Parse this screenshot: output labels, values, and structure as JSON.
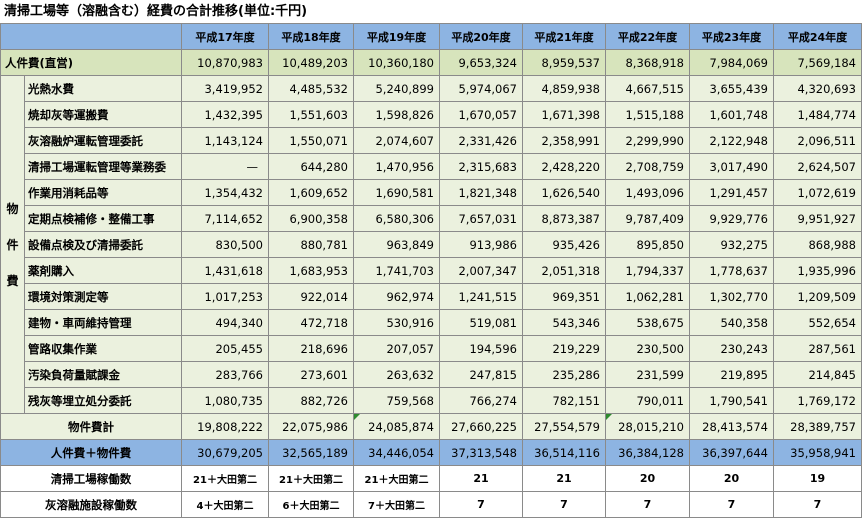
{
  "title": "清掃工場等（溶融含む）経費の合計推移(単位:千円)",
  "years": [
    "平成17年度",
    "平成18年度",
    "平成19年度",
    "平成20年度",
    "平成21年度",
    "平成22年度",
    "平成23年度",
    "平成24年度"
  ],
  "jinken": {
    "label": "人件費(直営)",
    "values": [
      "10,870,983",
      "10,489,203",
      "10,360,180",
      "9,653,324",
      "8,959,537",
      "8,368,918",
      "7,984,069",
      "7,569,184"
    ]
  },
  "group_label": [
    "物",
    "件",
    "費"
  ],
  "items": [
    {
      "label": "光熱水費",
      "values": [
        "3,419,952",
        "4,485,532",
        "5,240,899",
        "5,974,067",
        "4,859,938",
        "4,667,515",
        "3,655,439",
        "4,320,693"
      ]
    },
    {
      "label": "焼却灰等運搬費",
      "values": [
        "1,432,395",
        "1,551,603",
        "1,598,826",
        "1,670,057",
        "1,671,398",
        "1,515,188",
        "1,601,748",
        "1,484,774"
      ]
    },
    {
      "label": "灰溶融炉運転管理委託",
      "values": [
        "1,143,124",
        "1,550,071",
        "2,074,607",
        "2,331,426",
        "2,358,991",
        "2,299,990",
        "2,122,948",
        "2,096,511"
      ]
    },
    {
      "label": "清掃工場運転管理等業務委",
      "values": [
        "—",
        "644,280",
        "1,470,956",
        "2,315,683",
        "2,428,220",
        "2,708,759",
        "3,017,490",
        "2,624,507"
      ]
    },
    {
      "label": "作業用消耗品等",
      "values": [
        "1,354,432",
        "1,609,652",
        "1,690,581",
        "1,821,348",
        "1,626,540",
        "1,493,096",
        "1,291,457",
        "1,072,619"
      ]
    },
    {
      "label": "定期点検補修・整備工事",
      "values": [
        "7,114,652",
        "6,900,358",
        "6,580,306",
        "7,657,031",
        "8,873,387",
        "9,787,409",
        "9,929,776",
        "9,951,927"
      ]
    },
    {
      "label": "設備点検及び清掃委託",
      "values": [
        "830,500",
        "880,781",
        "963,849",
        "913,986",
        "935,426",
        "895,850",
        "932,275",
        "868,988"
      ]
    },
    {
      "label": "薬剤購入",
      "values": [
        "1,431,618",
        "1,683,953",
        "1,741,703",
        "2,007,347",
        "2,051,318",
        "1,794,337",
        "1,778,637",
        "1,935,996"
      ]
    },
    {
      "label": "環境対策測定等",
      "values": [
        "1,017,253",
        "922,014",
        "962,974",
        "1,241,515",
        "969,351",
        "1,062,281",
        "1,302,770",
        "1,209,509"
      ]
    },
    {
      "label": "建物・車両維持管理",
      "values": [
        "494,340",
        "472,718",
        "530,916",
        "519,081",
        "543,346",
        "538,675",
        "540,358",
        "552,654"
      ]
    },
    {
      "label": "管路収集作業",
      "values": [
        "205,455",
        "218,696",
        "207,057",
        "194,596",
        "219,229",
        "230,500",
        "230,243",
        "287,561"
      ]
    },
    {
      "label": "汚染負荷量賦課金",
      "values": [
        "283,766",
        "273,601",
        "263,632",
        "247,815",
        "235,286",
        "231,599",
        "219,895",
        "214,845"
      ]
    },
    {
      "label": "残灰等埋立処分委託",
      "values": [
        "1,080,735",
        "882,726",
        "759,568",
        "766,274",
        "782,151",
        "790,011",
        "1,790,541",
        "1,769,172"
      ]
    }
  ],
  "subtotal": {
    "label": "物件費計",
    "values": [
      "19,808,222",
      "22,075,986",
      "24,085,874",
      "27,660,225",
      "27,554,579",
      "28,015,210",
      "28,413,574",
      "28,389,757"
    ]
  },
  "total": {
    "label": "人件費＋物件費",
    "values": [
      "30,679,205",
      "32,565,189",
      "34,446,054",
      "37,313,548",
      "36,514,116",
      "36,384,128",
      "36,397,644",
      "35,958,941"
    ]
  },
  "plants": {
    "label": "清掃工場稼働数",
    "values": [
      "21＋大田第二",
      "21＋大田第二",
      "21＋大田第二",
      "21",
      "21",
      "20",
      "20",
      "19"
    ]
  },
  "melting": {
    "label": "灰溶融施設稼働数",
    "values": [
      "4＋大田第二",
      "6＋大田第二",
      "7＋大田第二",
      "7",
      "7",
      "7",
      "7",
      "7"
    ]
  }
}
